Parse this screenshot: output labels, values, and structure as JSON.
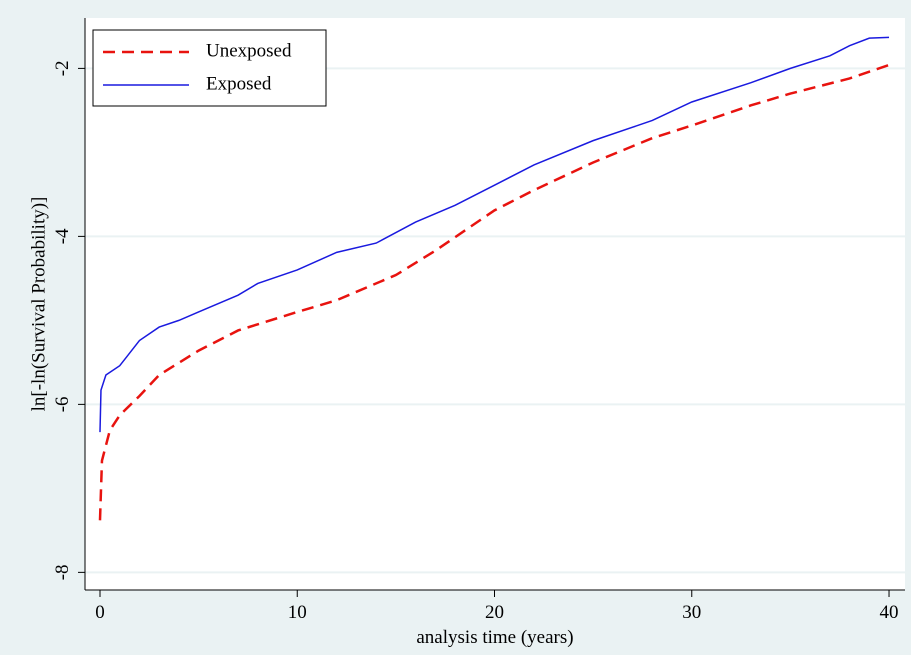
{
  "chart_data": {
    "type": "line",
    "xlabel": "analysis time (years)",
    "ylabel": "ln[-ln(Survival Probability)]",
    "series": [
      {
        "name": "Unexposed",
        "color": "#e8130f",
        "line_style": "dashed",
        "x": [
          0,
          0.1,
          0.5,
          1,
          2,
          3,
          5,
          7,
          10,
          12,
          15,
          17,
          20,
          22,
          25,
          28,
          30,
          33,
          35,
          38,
          40
        ],
        "values": [
          -7.38,
          -6.67,
          -6.31,
          -6.13,
          -5.9,
          -5.65,
          -5.36,
          -5.12,
          -4.9,
          -4.76,
          -4.46,
          -4.17,
          -3.69,
          -3.45,
          -3.12,
          -2.83,
          -2.68,
          -2.44,
          -2.3,
          -2.12,
          -1.96
        ]
      },
      {
        "name": "Exposed",
        "color": "#1a1adf",
        "line_style": "solid",
        "x": [
          0,
          0.05,
          0.3,
          1,
          2,
          3,
          4,
          5,
          7,
          8,
          10,
          12,
          14,
          16,
          18,
          20,
          22,
          25,
          28,
          30,
          33,
          35,
          37,
          38,
          39,
          40
        ],
        "values": [
          -6.33,
          -5.83,
          -5.65,
          -5.54,
          -5.24,
          -5.08,
          -5.0,
          -4.9,
          -4.7,
          -4.56,
          -4.4,
          -4.19,
          -4.08,
          -3.83,
          -3.63,
          -3.39,
          -3.15,
          -2.86,
          -2.62,
          -2.4,
          -2.17,
          -2.0,
          -1.85,
          -1.73,
          -1.64,
          -1.63
        ]
      }
    ],
    "xlim": [
      -0.76,
      40.81
    ],
    "xticks": [
      0,
      10,
      20,
      30,
      40
    ],
    "ylim": [
      -8.21,
      -1.4
    ],
    "yticks": [
      -8,
      -6,
      -4,
      -2
    ],
    "grid": true,
    "legend_position": "top-left"
  }
}
